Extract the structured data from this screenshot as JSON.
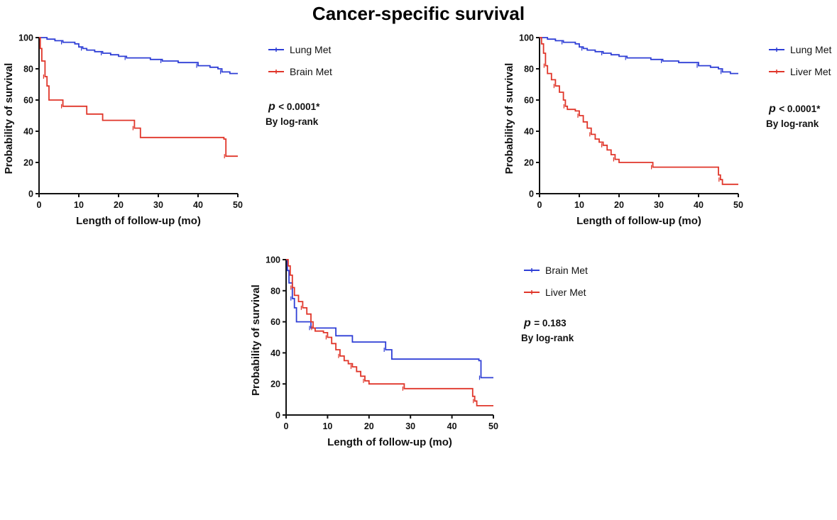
{
  "title": "Cancer-specific survival",
  "colors": {
    "blue": "#2f3fd6",
    "red": "#e0362a",
    "axis": "#111111"
  },
  "chart_data": [
    {
      "type": "line",
      "title": "Cancer-specific survival",
      "xlabel": "Length of follow-up (mo)",
      "ylabel": "Probability of survival",
      "xlim": [
        0,
        50
      ],
      "ylim": [
        0,
        100
      ],
      "xticks": [
        0,
        10,
        20,
        30,
        40,
        50
      ],
      "yticks": [
        0,
        20,
        40,
        60,
        80,
        100
      ],
      "legend_position": "right",
      "pvalue": "< 0.0001*",
      "test": "By log-rank",
      "series": [
        {
          "name": "Lung Met",
          "color": "#2f3fd6",
          "points": [
            [
              0,
              100
            ],
            [
              2,
              99
            ],
            [
              4,
              98
            ],
            [
              6,
              97
            ],
            [
              9,
              96
            ],
            [
              10,
              94
            ],
            [
              11,
              93
            ],
            [
              12,
              92
            ],
            [
              14,
              91
            ],
            [
              16,
              90
            ],
            [
              18,
              89
            ],
            [
              20,
              88
            ],
            [
              22,
              87
            ],
            [
              25,
              87
            ],
            [
              28,
              86
            ],
            [
              31,
              85
            ],
            [
              35,
              84
            ],
            [
              39,
              84
            ],
            [
              40,
              82
            ],
            [
              43,
              81
            ],
            [
              45,
              80
            ],
            [
              46,
              78
            ],
            [
              48,
              77
            ],
            [
              50,
              77
            ]
          ]
        },
        {
          "name": "Brain Met",
          "color": "#e0362a",
          "points": [
            [
              0,
              100
            ],
            [
              0.3,
              93
            ],
            [
              0.7,
              85
            ],
            [
              1.5,
              75
            ],
            [
              2,
              69
            ],
            [
              2.5,
              60
            ],
            [
              6,
              56
            ],
            [
              12,
              51
            ],
            [
              16,
              47
            ],
            [
              24,
              42
            ],
            [
              25.5,
              36
            ],
            [
              46.5,
              35
            ],
            [
              47,
              24
            ],
            [
              50,
              24
            ]
          ]
        }
      ]
    },
    {
      "type": "line",
      "xlabel": "Length of follow-up (mo)",
      "ylabel": "Probability of survival",
      "xlim": [
        0,
        50
      ],
      "ylim": [
        0,
        100
      ],
      "xticks": [
        0,
        10,
        20,
        30,
        40,
        50
      ],
      "yticks": [
        0,
        20,
        40,
        60,
        80,
        100
      ],
      "legend_position": "right",
      "pvalue": "< 0.0001*",
      "test": "By log-rank",
      "series": [
        {
          "name": "Lung Met",
          "color": "#2f3fd6",
          "points": [
            [
              0,
              100
            ],
            [
              2,
              99
            ],
            [
              4,
              98
            ],
            [
              6,
              97
            ],
            [
              9,
              96
            ],
            [
              10,
              94
            ],
            [
              11,
              93
            ],
            [
              12,
              92
            ],
            [
              14,
              91
            ],
            [
              16,
              90
            ],
            [
              18,
              89
            ],
            [
              20,
              88
            ],
            [
              22,
              87
            ],
            [
              25,
              87
            ],
            [
              28,
              86
            ],
            [
              31,
              85
            ],
            [
              35,
              84
            ],
            [
              39,
              84
            ],
            [
              40,
              82
            ],
            [
              43,
              81
            ],
            [
              45,
              80
            ],
            [
              46,
              78
            ],
            [
              48,
              77
            ],
            [
              50,
              77
            ]
          ]
        },
        {
          "name": "Liver Met",
          "color": "#e0362a",
          "points": [
            [
              0,
              100
            ],
            [
              0.5,
              96
            ],
            [
              1,
              90
            ],
            [
              1.5,
              82
            ],
            [
              2,
              77
            ],
            [
              3,
              73
            ],
            [
              4,
              69
            ],
            [
              5,
              65
            ],
            [
              6,
              60
            ],
            [
              6.5,
              56
            ],
            [
              7,
              54
            ],
            [
              9,
              53
            ],
            [
              10,
              50
            ],
            [
              11,
              46
            ],
            [
              12,
              42
            ],
            [
              13,
              38
            ],
            [
              14,
              35
            ],
            [
              15,
              33
            ],
            [
              16,
              31
            ],
            [
              17,
              28
            ],
            [
              18,
              25
            ],
            [
              19,
              22
            ],
            [
              20,
              20
            ],
            [
              28,
              20
            ],
            [
              28.5,
              17
            ],
            [
              44,
              17
            ],
            [
              45,
              12
            ],
            [
              45.5,
              9
            ],
            [
              46,
              6
            ],
            [
              50,
              6
            ]
          ]
        }
      ]
    },
    {
      "type": "line",
      "xlabel": "Length of follow-up (mo)",
      "ylabel": "Probability of survival",
      "xlim": [
        0,
        50
      ],
      "ylim": [
        0,
        100
      ],
      "xticks": [
        0,
        10,
        20,
        30,
        40,
        50
      ],
      "yticks": [
        0,
        20,
        40,
        60,
        80,
        100
      ],
      "legend_position": "right",
      "pvalue": "= 0.183",
      "test": "By log-rank",
      "series": [
        {
          "name": "Brain Met",
          "color": "#2f3fd6",
          "points": [
            [
              0,
              100
            ],
            [
              0.3,
              93
            ],
            [
              0.7,
              85
            ],
            [
              1.5,
              75
            ],
            [
              2,
              69
            ],
            [
              2.5,
              60
            ],
            [
              6,
              56
            ],
            [
              12,
              51
            ],
            [
              16,
              47
            ],
            [
              24,
              42
            ],
            [
              25.5,
              36
            ],
            [
              46.5,
              35
            ],
            [
              47,
              24
            ],
            [
              50,
              24
            ]
          ]
        },
        {
          "name": "Liver Met",
          "color": "#e0362a",
          "points": [
            [
              0,
              100
            ],
            [
              0.5,
              96
            ],
            [
              1,
              90
            ],
            [
              1.5,
              82
            ],
            [
              2,
              77
            ],
            [
              3,
              73
            ],
            [
              4,
              69
            ],
            [
              5,
              65
            ],
            [
              6,
              60
            ],
            [
              6.5,
              56
            ],
            [
              7,
              54
            ],
            [
              9,
              53
            ],
            [
              10,
              50
            ],
            [
              11,
              46
            ],
            [
              12,
              42
            ],
            [
              13,
              38
            ],
            [
              14,
              35
            ],
            [
              15,
              33
            ],
            [
              16,
              31
            ],
            [
              17,
              28
            ],
            [
              18,
              25
            ],
            [
              19,
              22
            ],
            [
              20,
              20
            ],
            [
              28,
              20
            ],
            [
              28.5,
              17
            ],
            [
              44,
              17
            ],
            [
              45,
              12
            ],
            [
              45.5,
              9
            ],
            [
              46,
              6
            ],
            [
              50,
              6
            ]
          ]
        }
      ]
    }
  ]
}
